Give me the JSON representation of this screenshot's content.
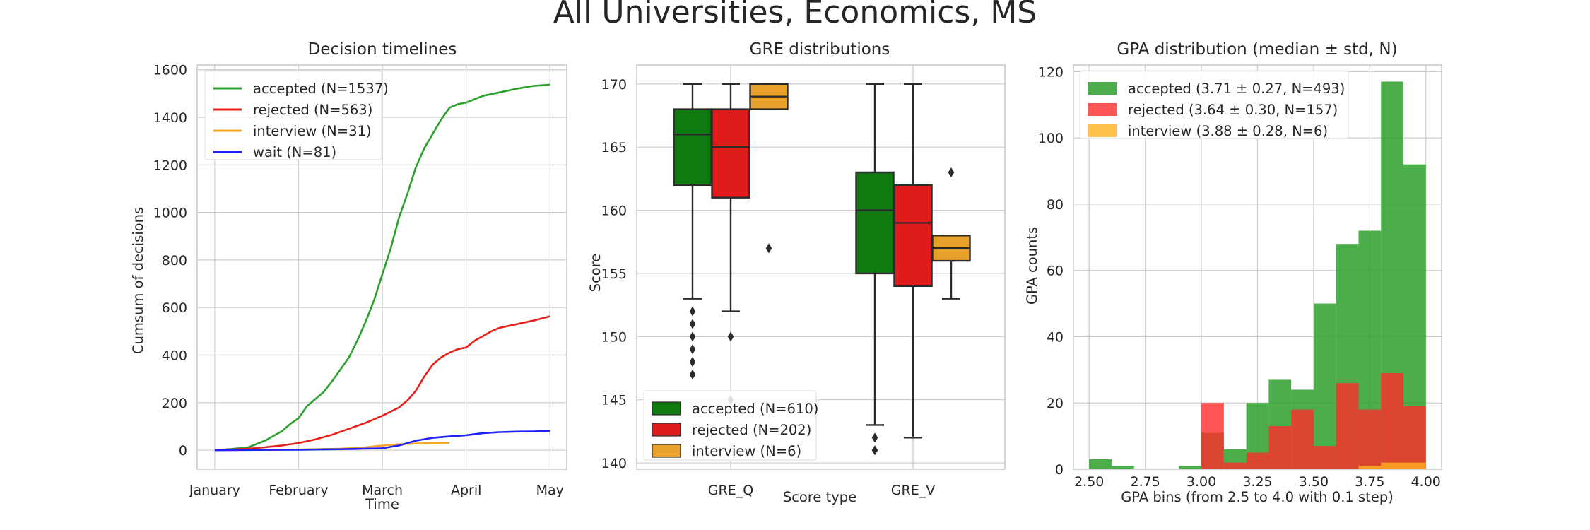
{
  "figure": {
    "title": "All Universities, Economics, MS"
  },
  "chart_data": [
    {
      "type": "line",
      "title": "Decision timelines",
      "xlabel": "Time",
      "ylabel": "Cumsum of decisions",
      "x_ticks": [
        "January",
        "February",
        "March",
        "April",
        "May"
      ],
      "x_months": [
        1,
        2,
        3,
        4,
        5
      ],
      "ylim": [
        -80,
        1620
      ],
      "y_ticks": [
        0,
        200,
        400,
        600,
        800,
        1000,
        1200,
        1400,
        1600
      ],
      "grid": true,
      "legend_position": "top-left",
      "series": [
        {
          "name": "accepted (N=1537)",
          "color": "#2ca02c",
          "x": [
            1.0,
            1.2,
            1.4,
            1.6,
            1.8,
            1.9,
            2.0,
            2.1,
            2.2,
            2.3,
            2.4,
            2.5,
            2.6,
            2.7,
            2.8,
            2.9,
            3.0,
            3.1,
            3.2,
            3.3,
            3.4,
            3.5,
            3.6,
            3.7,
            3.8,
            3.9,
            4.0,
            4.2,
            4.4,
            4.6,
            4.8,
            5.0
          ],
          "y": [
            0,
            5,
            12,
            40,
            80,
            110,
            135,
            185,
            215,
            245,
            290,
            340,
            390,
            460,
            540,
            630,
            740,
            850,
            980,
            1080,
            1190,
            1270,
            1330,
            1390,
            1440,
            1455,
            1462,
            1490,
            1505,
            1520,
            1532,
            1537
          ]
        },
        {
          "name": "rejected (N=563)",
          "color": "#e8221b",
          "x": [
            1.0,
            1.2,
            1.4,
            1.6,
            1.8,
            2.0,
            2.2,
            2.4,
            2.6,
            2.8,
            3.0,
            3.2,
            3.3,
            3.4,
            3.5,
            3.6,
            3.7,
            3.8,
            3.9,
            4.0,
            4.1,
            4.2,
            4.3,
            4.4,
            4.6,
            4.8,
            5.0
          ],
          "y": [
            0,
            3,
            6,
            12,
            20,
            30,
            45,
            65,
            90,
            115,
            145,
            180,
            210,
            250,
            310,
            360,
            390,
            410,
            425,
            432,
            460,
            480,
            500,
            515,
            530,
            545,
            563
          ]
        },
        {
          "name": "interview (N=31)",
          "color": "#f5a623",
          "x": [
            1.0,
            1.5,
            2.0,
            2.5,
            2.8,
            3.0,
            3.2,
            3.4,
            3.6,
            3.8
          ],
          "y": [
            0,
            1,
            3,
            6,
            12,
            20,
            25,
            28,
            30,
            31
          ]
        },
        {
          "name": "wait (N=81)",
          "color": "#1f1fff",
          "x": [
            1.0,
            1.5,
            2.0,
            2.5,
            3.0,
            3.2,
            3.4,
            3.6,
            3.8,
            4.0,
            4.2,
            4.4,
            4.6,
            4.8,
            5.0
          ],
          "y": [
            0,
            1,
            2,
            4,
            8,
            20,
            40,
            52,
            58,
            63,
            72,
            76,
            78,
            79,
            81
          ]
        }
      ]
    },
    {
      "type": "box",
      "title": "GRE distributions",
      "xlabel": "Score type",
      "ylabel": "Score",
      "categories": [
        "GRE_Q",
        "GRE_V"
      ],
      "ylim": [
        139.5,
        171.5
      ],
      "y_ticks": [
        140,
        145,
        150,
        155,
        160,
        165,
        170
      ],
      "grid": true,
      "legend_position": "bottom-left",
      "series": [
        {
          "name": "accepted (N=610)",
          "color": "#0f7a0f",
          "boxes": [
            {
              "whislo": 153,
              "q1": 162,
              "med": 166,
              "q3": 168,
              "whishi": 170,
              "fliers": [
                152,
                151,
                150,
                149,
                148,
                147
              ]
            },
            {
              "whislo": 143,
              "q1": 155,
              "med": 160,
              "q3": 163,
              "whishi": 170,
              "fliers": [
                142,
                141
              ]
            }
          ]
        },
        {
          "name": "rejected (N=202)",
          "color": "#e01b1b",
          "boxes": [
            {
              "whislo": 152,
              "q1": 161,
              "med": 165,
              "q3": 168,
              "whishi": 170,
              "fliers": [
                150,
                145
              ]
            },
            {
              "whislo": 142,
              "q1": 154,
              "med": 159,
              "q3": 162,
              "whishi": 170,
              "fliers": []
            }
          ]
        },
        {
          "name": "interview (N=6)",
          "color": "#e8a12a",
          "boxes": [
            {
              "whislo": 168,
              "q1": 168,
              "med": 169,
              "q3": 170,
              "whishi": 170,
              "fliers": [
                157
              ]
            },
            {
              "whislo": 153,
              "q1": 156,
              "med": 157,
              "q3": 158,
              "whishi": 158,
              "fliers": [
                163
              ]
            }
          ]
        }
      ]
    },
    {
      "type": "histogram",
      "title": "GPA distribution (median ± std, N)",
      "xlabel": "GPA bins (from 2.5 to 4.0 with 0.1 step)",
      "ylabel": "GPA counts",
      "xlim": [
        2.43,
        4.07
      ],
      "x_ticks": [
        "2.50",
        "2.75",
        "3.00",
        "3.25",
        "3.50",
        "3.75",
        "4.00"
      ],
      "x_tick_values": [
        2.5,
        2.75,
        3.0,
        3.25,
        3.5,
        3.75,
        4.0
      ],
      "ylim": [
        0,
        122
      ],
      "y_ticks": [
        0,
        20,
        40,
        60,
        80,
        100,
        120
      ],
      "bin_edges": [
        2.5,
        2.6,
        2.7,
        2.8,
        2.9,
        3.0,
        3.1,
        3.2,
        3.3,
        3.4,
        3.5,
        3.6,
        3.7,
        3.8,
        3.9,
        4.0
      ],
      "grid": true,
      "legend_position": "top-left",
      "series": [
        {
          "name": "accepted (3.71 ± 0.27, N=493)",
          "color": "#2ca02c",
          "opacity": 0.85,
          "values": [
            3,
            1,
            0,
            0,
            1,
            11,
            6,
            20,
            27,
            24,
            50,
            68,
            72,
            117,
            92
          ]
        },
        {
          "name": "rejected (3.64 ± 0.30, N=157)",
          "color": "#ff2a2a",
          "opacity": 0.8,
          "values": [
            0,
            0,
            0,
            0,
            0,
            20,
            2,
            5,
            13,
            18,
            7,
            26,
            18,
            29,
            19
          ]
        },
        {
          "name": "interview (3.88 ± 0.28, N=6)",
          "color": "#ffb020",
          "opacity": 0.8,
          "values": [
            0,
            0,
            0,
            0,
            0,
            0,
            0,
            0,
            0,
            0,
            0,
            0,
            1,
            2,
            2
          ]
        }
      ]
    }
  ]
}
